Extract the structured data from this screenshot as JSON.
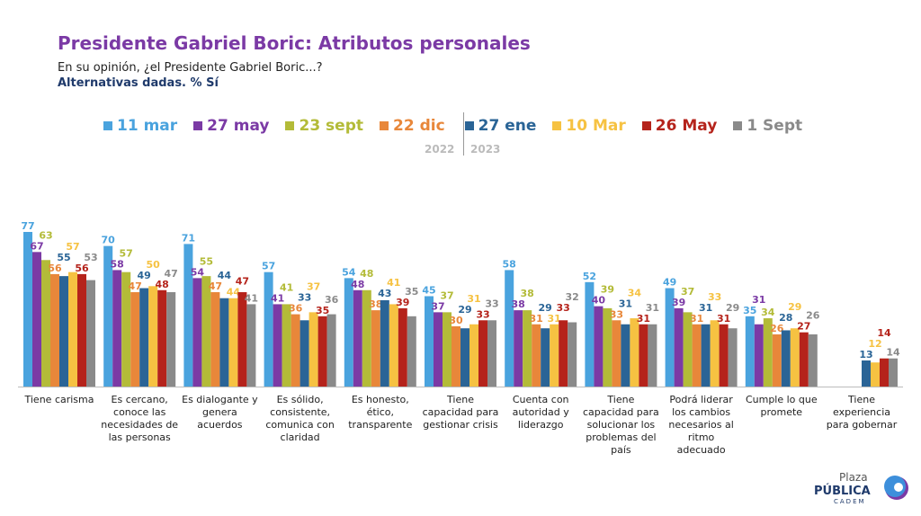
{
  "title": "Presidente Gabriel Boric: Atributos personales",
  "subtitle": "En su opinión, ¿el Presidente Gabriel Boric...?",
  "note": "Alternativas dadas. % Sí",
  "year_labels": [
    "2022",
    "2023"
  ],
  "logo": {
    "line1": "Plaza",
    "line2": "PÚBLICA",
    "line3": "CADEM"
  },
  "chart_data": {
    "type": "bar",
    "ylim": [
      0,
      80
    ],
    "grid": false,
    "legend_position": "top",
    "categories": [
      "Tiene carisma",
      "Es cercano, conoce las necesidades de las personas",
      "Es dialogante y genera acuerdos",
      "Es sólido, consistente, comunica con claridad",
      "Es honesto, ético, transparente",
      "Tiene capacidad para gestionar crisis",
      "Cuenta con autoridad y liderazgo",
      "Tiene capacidad para solucionar los problemas del país",
      "Podrá liderar los cambios necesarios al ritmo adecuado",
      "Cumple lo que promete",
      "Tiene experiencia para gobernar"
    ],
    "series": [
      {
        "name": "11 mar",
        "color": "#4aa3de",
        "values": [
          77,
          70,
          71,
          57,
          54,
          45,
          58,
          52,
          49,
          35,
          null
        ]
      },
      {
        "name": "27 may",
        "color": "#7b3aa5",
        "values": [
          67,
          58,
          54,
          41,
          48,
          37,
          38,
          40,
          39,
          31,
          null
        ]
      },
      {
        "name": "23 sept",
        "color": "#b3bb38",
        "values": [
          63,
          57,
          55,
          41,
          48,
          37,
          38,
          39,
          37,
          34,
          null
        ]
      },
      {
        "name": "22 dic",
        "color": "#e8873a",
        "values": [
          56,
          47,
          47,
          36,
          38,
          30,
          31,
          33,
          31,
          26,
          null
        ]
      },
      {
        "name": "27 ene",
        "color": "#2a6496",
        "values": [
          55,
          49,
          44,
          33,
          43,
          29,
          29,
          31,
          31,
          28,
          13
        ]
      },
      {
        "name": "10 Mar",
        "color": "#f6c242",
        "values": [
          57,
          50,
          44,
          37,
          41,
          31,
          31,
          34,
          33,
          29,
          12
        ]
      },
      {
        "name": "26 May",
        "color": "#b5231b",
        "values": [
          56,
          48,
          47,
          35,
          39,
          33,
          33,
          31,
          31,
          27,
          14
        ]
      },
      {
        "name": "1 Sept",
        "color": "#8a8a8a",
        "values": [
          53,
          47,
          41,
          36,
          35,
          33,
          32,
          31,
          29,
          26,
          14
        ]
      }
    ]
  }
}
